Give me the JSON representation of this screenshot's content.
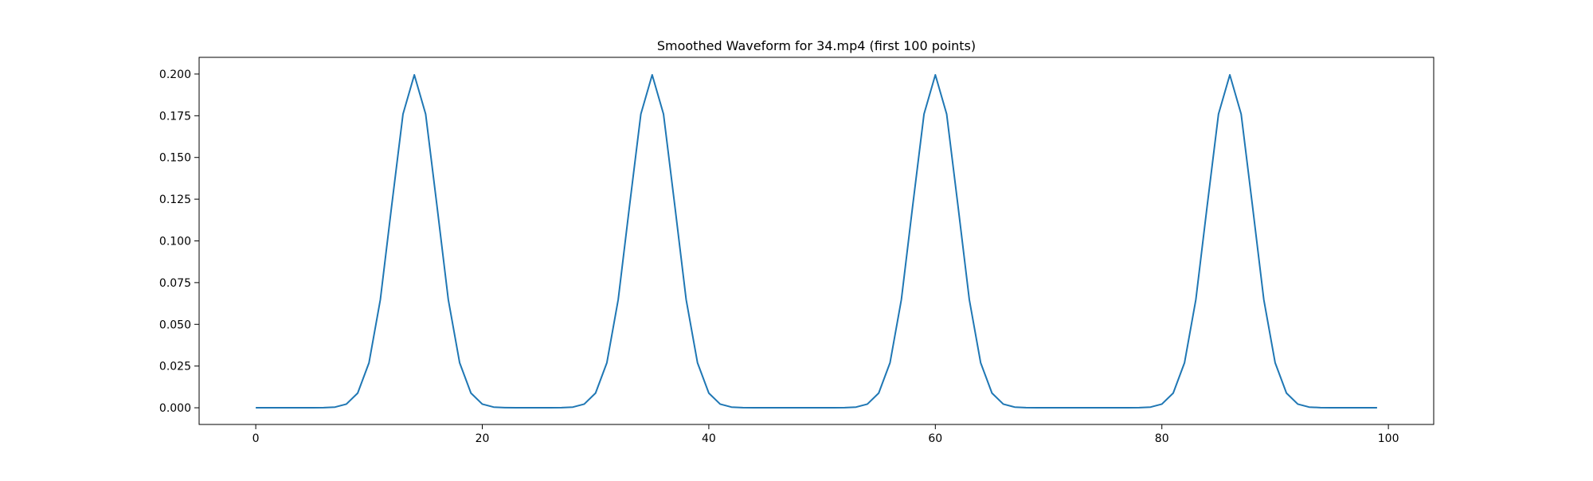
{
  "chart_data": {
    "type": "line",
    "title": "Smoothed Waveform for 34.mp4 (first 100 points)",
    "xlabel": "",
    "ylabel": "",
    "xlim": [
      -5,
      104
    ],
    "ylim": [
      -0.01,
      0.21
    ],
    "xticks": [
      0,
      20,
      40,
      60,
      80,
      100
    ],
    "xtick_labels": [
      "0",
      "20",
      "40",
      "60",
      "80",
      "100"
    ],
    "yticks": [
      0.0,
      0.025,
      0.05,
      0.075,
      0.1,
      0.125,
      0.15,
      0.175,
      0.2
    ],
    "ytick_labels": [
      "0.000",
      "0.025",
      "0.050",
      "0.075",
      "0.100",
      "0.125",
      "0.150",
      "0.175",
      "0.200"
    ],
    "grid": false,
    "legend": "none",
    "line_color": "#1f77b4",
    "series": [
      {
        "x": [
          0,
          1,
          2,
          3,
          4,
          5,
          6,
          7,
          8,
          9,
          10,
          11,
          12,
          13,
          14,
          15,
          16,
          17,
          18,
          19,
          20,
          21,
          22,
          23,
          24,
          25,
          26,
          27,
          28,
          29,
          30,
          31,
          32,
          33,
          34,
          35,
          36,
          37,
          38,
          39,
          40,
          41,
          42,
          43,
          44,
          45,
          46,
          47,
          48,
          49,
          50,
          51,
          52,
          53,
          54,
          55,
          56,
          57,
          58,
          59,
          60,
          61,
          62,
          63,
          64,
          65,
          66,
          67,
          68,
          69,
          70,
          71,
          72,
          73,
          74,
          75,
          76,
          77,
          78,
          79,
          80,
          81,
          82,
          83,
          84,
          85,
          86,
          87,
          88,
          89,
          90,
          91,
          92,
          93,
          94,
          95,
          96,
          97,
          98,
          99
        ],
        "values": [
          0,
          0,
          0,
          0,
          0,
          0,
          0.0001,
          0.0004,
          0.0022,
          0.0088,
          0.027,
          0.0648,
          0.121,
          0.176,
          0.1995,
          0.176,
          0.121,
          0.0648,
          0.027,
          0.0088,
          0.0022,
          0.0004,
          0.0001,
          0,
          0,
          0,
          0,
          0.0001,
          0.0004,
          0.0022,
          0.0088,
          0.027,
          0.0648,
          0.121,
          0.176,
          0.1995,
          0.176,
          0.121,
          0.0648,
          0.027,
          0.0088,
          0.0022,
          0.0004,
          0.0001,
          0,
          0,
          0,
          0,
          0,
          0,
          0,
          0,
          0.0001,
          0.0004,
          0.0022,
          0.0088,
          0.027,
          0.0648,
          0.121,
          0.176,
          0.1995,
          0.176,
          0.121,
          0.0648,
          0.027,
          0.0088,
          0.0022,
          0.0004,
          0.0001,
          0,
          0,
          0,
          0,
          0,
          0,
          0,
          0,
          0,
          0.0001,
          0.0004,
          0.0022,
          0.0088,
          0.027,
          0.0648,
          0.121,
          0.176,
          0.1995,
          0.176,
          0.121,
          0.0648,
          0.027,
          0.0088,
          0.0022,
          0.0004,
          0.0001,
          0,
          0,
          0,
          0,
          0
        ]
      }
    ]
  }
}
